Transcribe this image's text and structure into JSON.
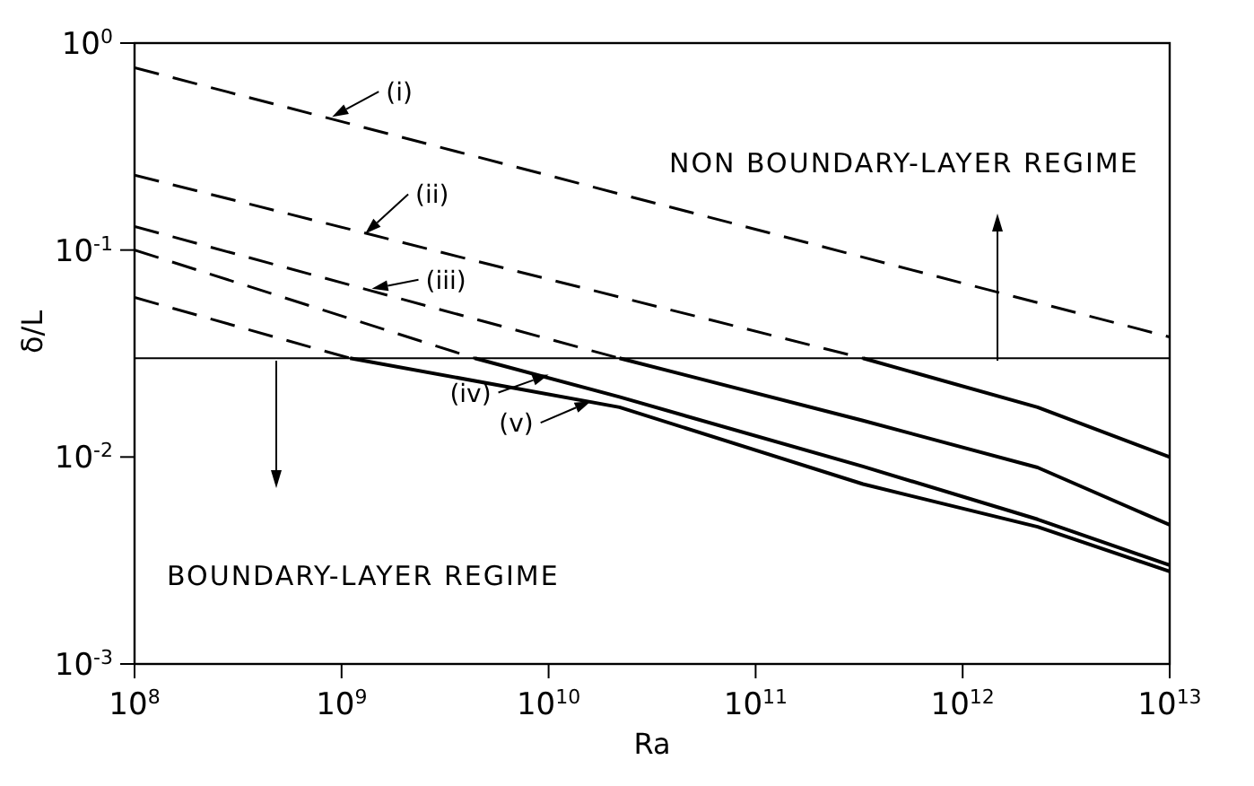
{
  "chart_data": {
    "type": "line",
    "xlabel": "Ra",
    "ylabel": "δ/L",
    "log": "xy",
    "marker": "none",
    "xlim": [
      100000000,
      10000000000000
    ],
    "ylim": [
      0.001,
      1
    ],
    "xticks": [
      {
        "value": 100000000,
        "label": "10$^{8}$"
      },
      {
        "value": 1000000000,
        "label": "10$^{9}$"
      },
      {
        "value": 10000000000,
        "label": "10$^{10}$"
      },
      {
        "value": 100000000000,
        "label": "10$^{11}$"
      },
      {
        "value": 1000000000000,
        "label": "10$^{12}$"
      },
      {
        "value": 10000000000000,
        "label": "10$^{13}$"
      }
    ],
    "yticks": [
      {
        "value": 0.001,
        "label": "10$^{-3}$"
      },
      {
        "value": 0.01,
        "label": "10$^{-2}$"
      },
      {
        "value": 0.1,
        "label": "10$^{-1}$"
      },
      {
        "value": 1,
        "label": "10$^{0}$"
      }
    ],
    "series": [
      {
        "color": "#000000",
        "line_style": "dashed",
        "x": [
          100000000,
          10000000000000
        ],
        "values": [
          0.76,
          0.038
        ]
      },
      {
        "color": "#000000",
        "line_style": "dashed",
        "x": [
          100000000,
          330000000000
        ],
        "values": [
          0.23,
          0.03
        ]
      },
      {
        "color": "#000000",
        "line_style": "solid",
        "x": [
          330000000000,
          2300000000000,
          10000000000000
        ],
        "values": [
          0.03,
          0.0174,
          0.01
        ]
      },
      {
        "color": "#000000",
        "line_style": "dashed",
        "x": [
          100000000,
          22000000000
        ],
        "values": [
          0.13,
          0.03
        ]
      },
      {
        "color": "#000000",
        "line_style": "solid",
        "x": [
          22000000000,
          330000000000,
          2300000000000,
          10000000000000
        ],
        "values": [
          0.03,
          0.015,
          0.0089,
          0.0047
        ]
      },
      {
        "color": "#000000",
        "line_style": "dashed",
        "x": [
          100000000,
          4400000000
        ],
        "values": [
          0.1,
          0.03
        ]
      },
      {
        "color": "#000000",
        "line_style": "solid",
        "x": [
          4400000000,
          22000000000,
          330000000000,
          2300000000000,
          10000000000000
        ],
        "values": [
          0.03,
          0.0195,
          0.009,
          0.005,
          0.003
        ]
      },
      {
        "color": "#000000",
        "line_style": "dashed",
        "x": [
          100000000,
          1100000000
        ],
        "values": [
          0.059,
          0.03
        ]
      },
      {
        "color": "#000000",
        "line_style": "solid",
        "x": [
          1100000000,
          22000000000,
          330000000000,
          2300000000000,
          10000000000000
        ],
        "values": [
          0.03,
          0.0174,
          0.0074,
          0.0046,
          0.0028
        ]
      }
    ],
    "ref_lines": [
      {
        "axis": "y",
        "value": 0.03,
        "color": "#000000",
        "line_style": "solid"
      }
    ],
    "annotations": [
      {
        "text": "(i)",
        "x": 900000000,
        "y": 0.44
      },
      {
        "text": "(ii)",
        "x": 1300000000,
        "y": 0.12
      },
      {
        "text": "(iii)",
        "x": 1400000000,
        "y": 0.065
      },
      {
        "text": "(iv)",
        "x": 10000000000,
        "y": 0.025
      },
      {
        "text": "(v)",
        "x": 16000000000,
        "y": 0.0186
      },
      "NON BOUNDARY-LAYER REGIME",
      "BOUNDARY-LAYER REGIME"
    ]
  }
}
